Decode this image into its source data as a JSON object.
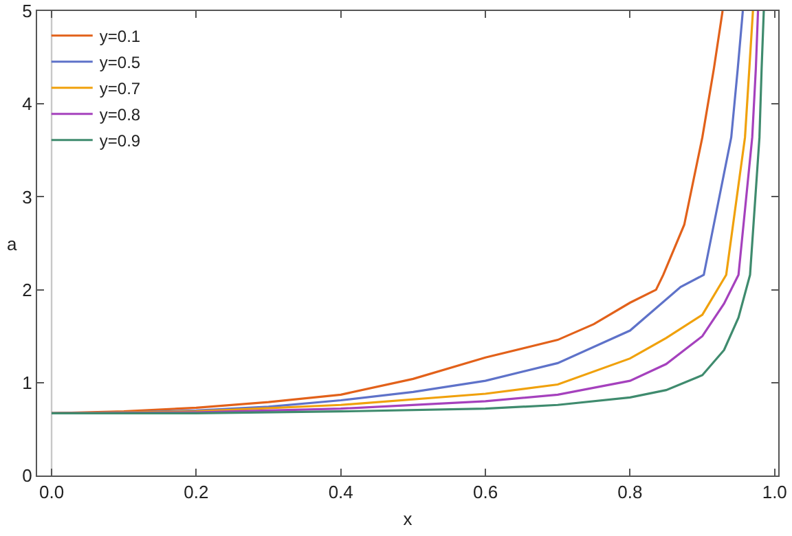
{
  "chart_data": {
    "type": "line",
    "xlabel": "x",
    "ylabel": "a",
    "xlim": [
      -0.02,
      1.005
    ],
    "ylim": [
      0,
      5
    ],
    "xticks": [
      {
        "value": 0,
        "label": "0.0"
      },
      0.2,
      0.4,
      0.6,
      0.8,
      {
        "value": 1,
        "label": "1.0"
      }
    ],
    "yticks": [
      0,
      1,
      2,
      3,
      4,
      5
    ],
    "grid": false,
    "legend": "top left",
    "marker": "none",
    "line_style": "solid",
    "ref_lines": [
      {
        "axis": "x",
        "value": 0,
        "color": "#c8c8c8"
      }
    ],
    "series": [
      {
        "name": "y=0.1",
        "color": "#e2611a",
        "x": [
          0,
          0.1,
          0.2,
          0.3,
          0.4,
          0.5,
          0.6,
          0.7,
          0.75,
          0.8,
          0.836,
          0.846,
          0.875,
          0.9,
          0.916,
          0.928
        ],
        "values": [
          0.67,
          0.69,
          0.73,
          0.79,
          0.87,
          1.04,
          1.27,
          1.46,
          1.63,
          1.86,
          2.0,
          2.16,
          2.7,
          3.64,
          4.38,
          5
        ]
      },
      {
        "name": "y=0.5",
        "color": "#5e72c9",
        "x": [
          0,
          0.1,
          0.2,
          0.3,
          0.4,
          0.5,
          0.6,
          0.7,
          0.8,
          0.87,
          0.902,
          0.94,
          0.949,
          0.956
        ],
        "values": [
          0.67,
          0.68,
          0.7,
          0.74,
          0.81,
          0.9,
          1.02,
          1.21,
          1.56,
          2.03,
          2.16,
          3.64,
          4.38,
          5
        ]
      },
      {
        "name": "y=0.7",
        "color": "#f0a10c",
        "x": [
          0,
          0.2,
          0.4,
          0.6,
          0.7,
          0.8,
          0.85,
          0.9,
          0.933,
          0.959,
          0.965,
          0.97
        ],
        "values": [
          0.67,
          0.69,
          0.76,
          0.88,
          0.98,
          1.26,
          1.48,
          1.73,
          2.16,
          3.64,
          4.38,
          5
        ]
      },
      {
        "name": "y=0.8",
        "color": "#a541bd",
        "x": [
          0,
          0.2,
          0.4,
          0.6,
          0.7,
          0.8,
          0.85,
          0.9,
          0.93,
          0.95,
          0.969,
          0.974,
          0.977
        ],
        "values": [
          0.67,
          0.68,
          0.72,
          0.8,
          0.87,
          1.02,
          1.2,
          1.5,
          1.85,
          2.16,
          3.64,
          4.38,
          5
        ]
      },
      {
        "name": "y=0.9",
        "color": "#3f8b6e",
        "x": [
          0,
          0.2,
          0.4,
          0.6,
          0.7,
          0.8,
          0.85,
          0.9,
          0.93,
          0.95,
          0.966,
          0.979,
          0.982,
          0.985
        ],
        "values": [
          0.67,
          0.67,
          0.69,
          0.72,
          0.76,
          0.84,
          0.92,
          1.08,
          1.35,
          1.7,
          2.16,
          3.64,
          4.38,
          5
        ]
      }
    ]
  }
}
